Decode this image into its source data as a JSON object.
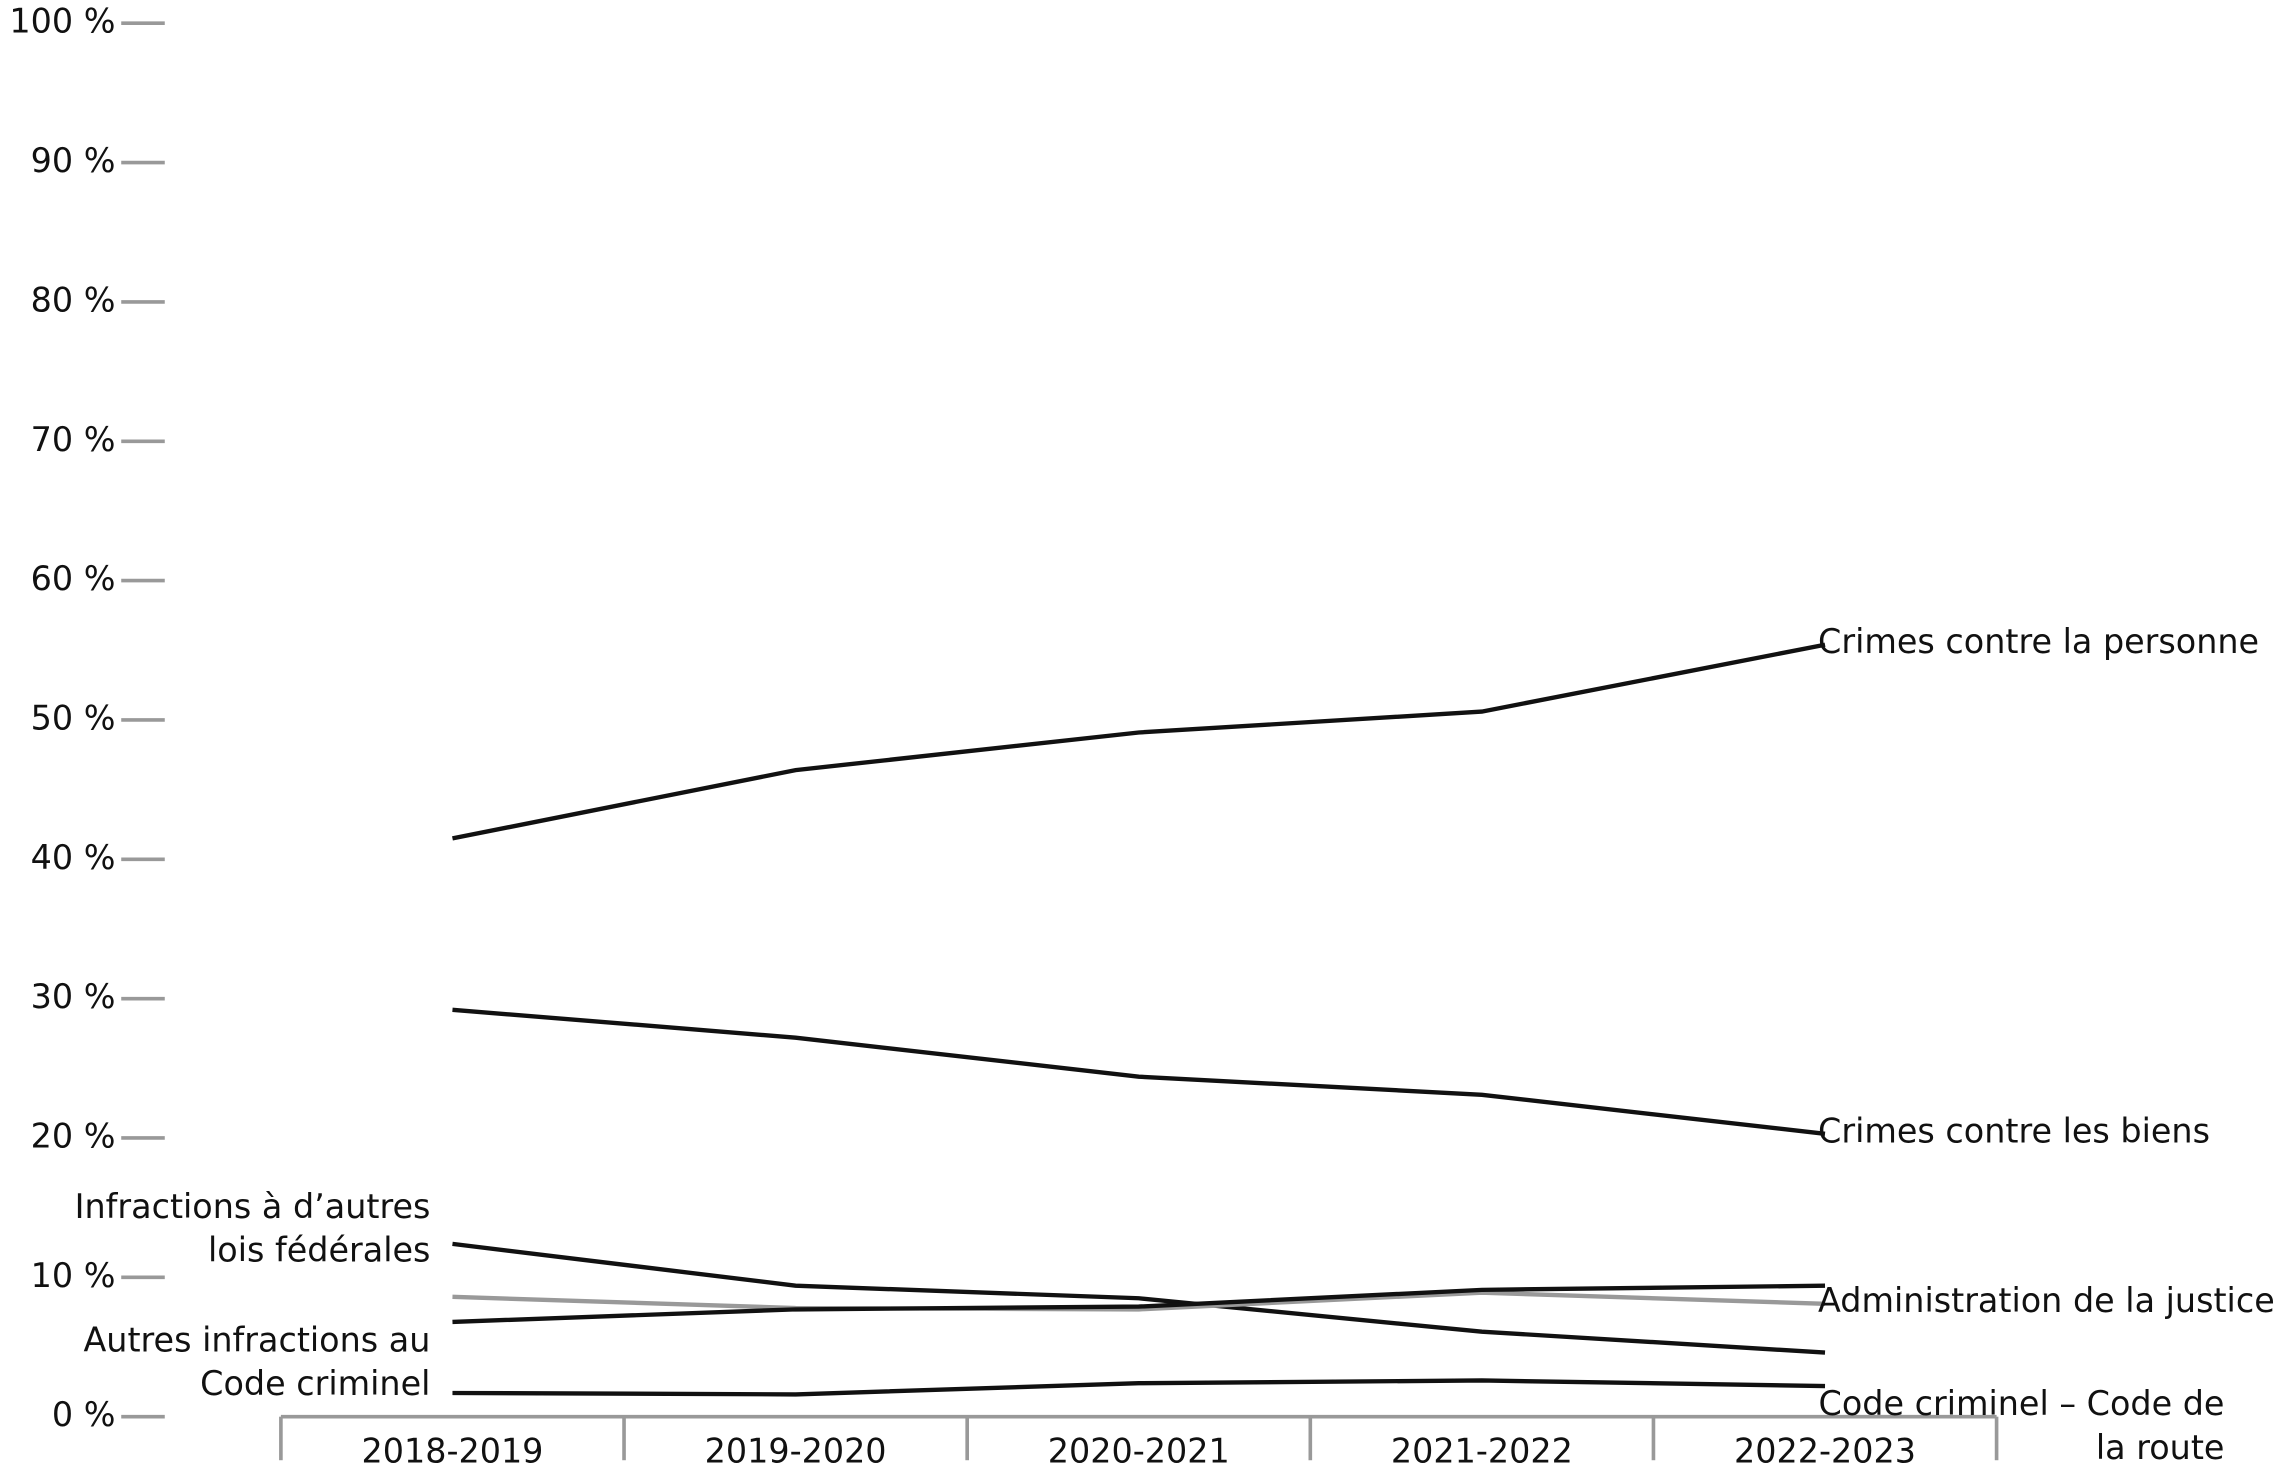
{
  "chart_data": {
    "type": "line",
    "categories": [
      "2018-2019",
      "2019-2020",
      "2020-2021",
      "2021-2022",
      "2022-2023"
    ],
    "series": [
      {
        "name": "Crimes contre la personne",
        "color": "#111111",
        "values": [
          41.5,
          46.4,
          49.1,
          50.6,
          55.4
        ]
      },
      {
        "name": "Crimes contre les biens",
        "color": "#111111",
        "values": [
          29.2,
          27.2,
          24.4,
          23.1,
          20.3
        ]
      },
      {
        "name": "Infractions à d’autres lois fédérales",
        "color": "#111111",
        "values": [
          12.4,
          9.4,
          8.5,
          6.1,
          4.6
        ]
      },
      {
        "name": "Administration de la justice",
        "color": "#999999",
        "values": [
          8.6,
          7.8,
          7.7,
          8.9,
          8.1
        ]
      },
      {
        "name": "Autres infractions au Code criminel",
        "color": "#111111",
        "values": [
          6.8,
          7.7,
          7.9,
          9.1,
          9.4
        ]
      },
      {
        "name": "Code criminel – Code de la route",
        "color": "#111111",
        "values": [
          1.7,
          1.6,
          2.4,
          2.6,
          2.2
        ]
      }
    ],
    "ylim": [
      0,
      100
    ],
    "yticks": [
      {
        "value": 0,
        "label": "0 %"
      },
      {
        "value": 10,
        "label": "10 %"
      },
      {
        "value": 20,
        "label": "20 %"
      },
      {
        "value": 30,
        "label": "30 %"
      },
      {
        "value": 40,
        "label": "40 %"
      },
      {
        "value": 50,
        "label": "50 %"
      },
      {
        "value": 60,
        "label": "60 %"
      },
      {
        "value": 70,
        "label": "70 %"
      },
      {
        "value": 80,
        "label": "80 %"
      },
      {
        "value": 90,
        "label": "90 %"
      },
      {
        "value": 100,
        "label": "100 %"
      }
    ]
  }
}
